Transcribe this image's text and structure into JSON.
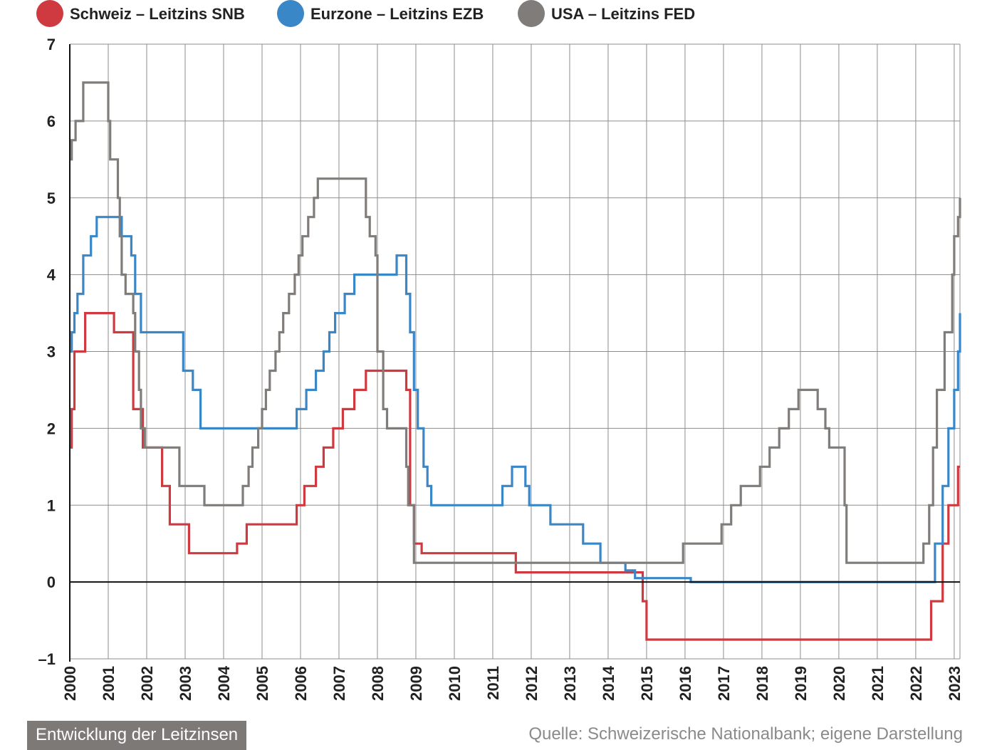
{
  "footer": {
    "title": "Entwicklung der Leitzinsen",
    "source": "Quelle: Schweizerische Nationalbank; eigene Darstellung"
  },
  "chart_data": {
    "type": "line",
    "step": true,
    "title": "",
    "xlabel": "",
    "ylabel": "",
    "xlim": [
      2000,
      2023.15
    ],
    "ylim": [
      -1,
      7
    ],
    "yticks": [
      "7",
      "6",
      "5",
      "4",
      "3",
      "2",
      "1",
      "0",
      "–1"
    ],
    "xticks": [
      "2000",
      "2001",
      "2002",
      "2003",
      "2004",
      "2005",
      "2006",
      "2007",
      "2008",
      "2009",
      "2010",
      "2011",
      "2012",
      "2013",
      "2014",
      "2015",
      "2016",
      "2017",
      "2018",
      "2019",
      "2020",
      "2021",
      "2022",
      "2023"
    ],
    "grid": true,
    "zero_line": true,
    "legend_position": "top",
    "series": [
      {
        "name": "Schweiz – Leitzins SNB",
        "color": "#cf3a40",
        "points": [
          [
            2000.0,
            1.75
          ],
          [
            2000.05,
            2.25
          ],
          [
            2000.12,
            3.0
          ],
          [
            2000.4,
            3.5
          ],
          [
            2001.15,
            3.25
          ],
          [
            2001.65,
            2.25
          ],
          [
            2001.9,
            1.75
          ],
          [
            2002.4,
            1.25
          ],
          [
            2002.6,
            0.75
          ],
          [
            2003.1,
            0.375
          ],
          [
            2004.35,
            0.5
          ],
          [
            2004.6,
            0.75
          ],
          [
            2005.9,
            1.0
          ],
          [
            2006.1,
            1.25
          ],
          [
            2006.4,
            1.5
          ],
          [
            2006.6,
            1.75
          ],
          [
            2006.85,
            2.0
          ],
          [
            2007.1,
            2.25
          ],
          [
            2007.4,
            2.5
          ],
          [
            2007.7,
            2.75
          ],
          [
            2008.75,
            2.5
          ],
          [
            2008.85,
            1.0
          ],
          [
            2008.95,
            0.5
          ],
          [
            2009.15,
            0.375
          ],
          [
            2011.6,
            0.125
          ],
          [
            2014.9,
            -0.25
          ],
          [
            2015.0,
            -0.75
          ],
          [
            2022.4,
            -0.25
          ],
          [
            2022.7,
            0.5
          ],
          [
            2022.85,
            1.0
          ],
          [
            2023.1,
            1.5
          ],
          [
            2023.15,
            1.5
          ]
        ]
      },
      {
        "name": "Eurzone – Leitzins EZB",
        "color": "#3a87c8",
        "points": [
          [
            2000.0,
            3.0
          ],
          [
            2000.05,
            3.25
          ],
          [
            2000.12,
            3.5
          ],
          [
            2000.2,
            3.75
          ],
          [
            2000.35,
            4.25
          ],
          [
            2000.55,
            4.5
          ],
          [
            2000.7,
            4.75
          ],
          [
            2001.35,
            4.5
          ],
          [
            2001.6,
            4.25
          ],
          [
            2001.7,
            3.75
          ],
          [
            2001.85,
            3.25
          ],
          [
            2002.95,
            2.75
          ],
          [
            2003.2,
            2.5
          ],
          [
            2003.4,
            2.0
          ],
          [
            2005.9,
            2.25
          ],
          [
            2006.15,
            2.5
          ],
          [
            2006.4,
            2.75
          ],
          [
            2006.6,
            3.0
          ],
          [
            2006.75,
            3.25
          ],
          [
            2006.9,
            3.5
          ],
          [
            2007.15,
            3.75
          ],
          [
            2007.4,
            4.0
          ],
          [
            2008.5,
            4.25
          ],
          [
            2008.75,
            3.75
          ],
          [
            2008.85,
            3.25
          ],
          [
            2008.95,
            2.5
          ],
          [
            2009.05,
            2.0
          ],
          [
            2009.2,
            1.5
          ],
          [
            2009.3,
            1.25
          ],
          [
            2009.4,
            1.0
          ],
          [
            2011.25,
            1.25
          ],
          [
            2011.5,
            1.5
          ],
          [
            2011.85,
            1.25
          ],
          [
            2011.95,
            1.0
          ],
          [
            2012.5,
            0.75
          ],
          [
            2013.35,
            0.5
          ],
          [
            2013.8,
            0.25
          ],
          [
            2014.45,
            0.15
          ],
          [
            2014.7,
            0.05
          ],
          [
            2016.15,
            0.0
          ],
          [
            2022.5,
            0.5
          ],
          [
            2022.7,
            1.25
          ],
          [
            2022.85,
            2.0
          ],
          [
            2023.0,
            2.5
          ],
          [
            2023.1,
            3.0
          ],
          [
            2023.15,
            3.5
          ]
        ]
      },
      {
        "name": "USA – Leitzins FED",
        "color": "#7f7c7a",
        "points": [
          [
            2000.0,
            5.5
          ],
          [
            2000.05,
            5.75
          ],
          [
            2000.15,
            6.0
          ],
          [
            2000.35,
            6.5
          ],
          [
            2001.0,
            6.0
          ],
          [
            2001.05,
            5.5
          ],
          [
            2001.25,
            5.0
          ],
          [
            2001.3,
            4.5
          ],
          [
            2001.35,
            4.0
          ],
          [
            2001.45,
            3.75
          ],
          [
            2001.65,
            3.5
          ],
          [
            2001.7,
            3.0
          ],
          [
            2001.8,
            2.5
          ],
          [
            2001.85,
            2.0
          ],
          [
            2001.95,
            1.75
          ],
          [
            2002.85,
            1.25
          ],
          [
            2003.5,
            1.0
          ],
          [
            2004.5,
            1.25
          ],
          [
            2004.65,
            1.5
          ],
          [
            2004.75,
            1.75
          ],
          [
            2004.9,
            2.0
          ],
          [
            2005.0,
            2.25
          ],
          [
            2005.1,
            2.5
          ],
          [
            2005.2,
            2.75
          ],
          [
            2005.35,
            3.0
          ],
          [
            2005.45,
            3.25
          ],
          [
            2005.55,
            3.5
          ],
          [
            2005.7,
            3.75
          ],
          [
            2005.85,
            4.0
          ],
          [
            2005.95,
            4.25
          ],
          [
            2006.05,
            4.5
          ],
          [
            2006.2,
            4.75
          ],
          [
            2006.35,
            5.0
          ],
          [
            2006.45,
            5.25
          ],
          [
            2007.7,
            4.75
          ],
          [
            2007.8,
            4.5
          ],
          [
            2007.95,
            4.25
          ],
          [
            2008.0,
            3.0
          ],
          [
            2008.15,
            2.25
          ],
          [
            2008.25,
            2.0
          ],
          [
            2008.75,
            1.5
          ],
          [
            2008.8,
            1.0
          ],
          [
            2008.95,
            0.25
          ],
          [
            2015.95,
            0.5
          ],
          [
            2016.95,
            0.75
          ],
          [
            2017.2,
            1.0
          ],
          [
            2017.45,
            1.25
          ],
          [
            2017.95,
            1.5
          ],
          [
            2018.2,
            1.75
          ],
          [
            2018.45,
            2.0
          ],
          [
            2018.7,
            2.25
          ],
          [
            2018.95,
            2.5
          ],
          [
            2019.45,
            2.25
          ],
          [
            2019.65,
            2.0
          ],
          [
            2019.75,
            1.75
          ],
          [
            2020.15,
            1.0
          ],
          [
            2020.2,
            0.25
          ],
          [
            2022.2,
            0.5
          ],
          [
            2022.35,
            1.0
          ],
          [
            2022.45,
            1.75
          ],
          [
            2022.55,
            2.5
          ],
          [
            2022.75,
            3.25
          ],
          [
            2022.95,
            4.0
          ],
          [
            2023.0,
            4.5
          ],
          [
            2023.1,
            4.75
          ],
          [
            2023.15,
            5.0
          ]
        ]
      }
    ]
  }
}
